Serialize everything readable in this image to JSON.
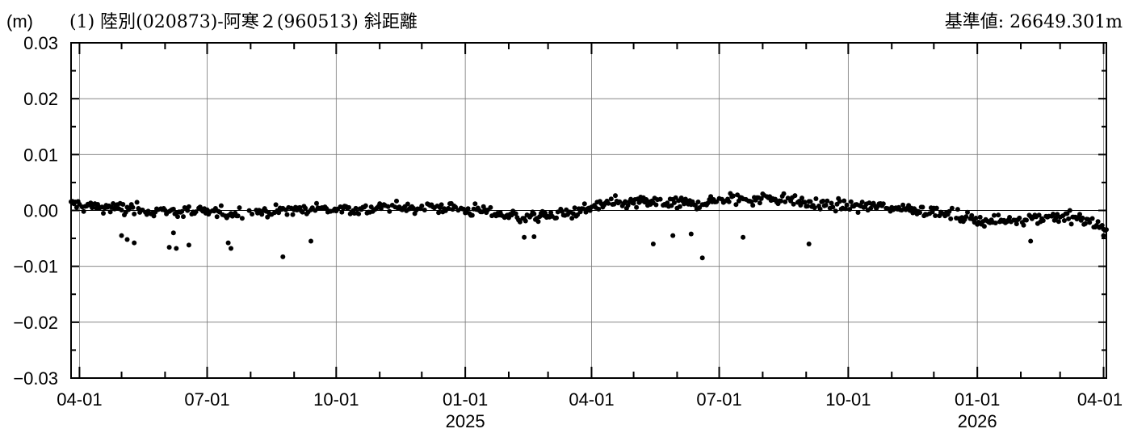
{
  "chart_data": {
    "type": "scatter",
    "title": "(1) 陸別(020873)-阿寒２(960513) 斜距離",
    "reference_label": "基準値: 26649.301m",
    "ylabel": "(m)",
    "xlabel": "",
    "ylim": [
      -0.03,
      0.03
    ],
    "xlim": [
      "2024-03-26",
      "2026-04-03"
    ],
    "y_ticks": [
      "0.03",
      "0.02",
      "0.01",
      "0.00",
      "−0.01",
      "−0.02",
      "−0.03"
    ],
    "y_tick_values": [
      0.03,
      0.02,
      0.01,
      0.0,
      -0.01,
      -0.02,
      -0.03
    ],
    "x_ticks": [
      {
        "date": "2024-04-01",
        "label": "04-01",
        "year": ""
      },
      {
        "date": "2024-07-01",
        "label": "07-01",
        "year": ""
      },
      {
        "date": "2024-10-01",
        "label": "10-01",
        "year": ""
      },
      {
        "date": "2025-01-01",
        "label": "01-01",
        "year": "2025"
      },
      {
        "date": "2025-04-01",
        "label": "04-01",
        "year": ""
      },
      {
        "date": "2025-07-01",
        "label": "07-01",
        "year": ""
      },
      {
        "date": "2025-10-01",
        "label": "10-01",
        "year": ""
      },
      {
        "date": "2026-01-01",
        "label": "01-01",
        "year": "2026"
      },
      {
        "date": "2026-04-01",
        "label": "04-01",
        "year": ""
      }
    ],
    "grid": true,
    "zero_line": true,
    "marker_color": "#000000",
    "trend_anchors": [
      [
        "2024-03-26",
        0.0012
      ],
      [
        "2024-04-20",
        0.0005
      ],
      [
        "2024-05-10",
        0.0002
      ],
      [
        "2024-06-15",
        -0.0003
      ],
      [
        "2024-07-15",
        -0.0005
      ],
      [
        "2024-08-15",
        -0.0002
      ],
      [
        "2024-09-15",
        0.0003
      ],
      [
        "2024-10-15",
        0.0002
      ],
      [
        "2024-11-15",
        0.0005
      ],
      [
        "2024-12-15",
        0.0006
      ],
      [
        "2025-01-15",
        -0.0002
      ],
      [
        "2025-02-10",
        -0.0012
      ],
      [
        "2025-03-10",
        -0.0008
      ],
      [
        "2025-04-10",
        0.001
      ],
      [
        "2025-05-10",
        0.0015
      ],
      [
        "2025-06-10",
        0.0012
      ],
      [
        "2025-07-10",
        0.002
      ],
      [
        "2025-08-10",
        0.0022
      ],
      [
        "2025-09-10",
        0.001
      ],
      [
        "2025-10-10",
        0.0008
      ],
      [
        "2025-11-15",
        0.0004
      ],
      [
        "2025-12-20",
        -0.0012
      ],
      [
        "2026-01-10",
        -0.002
      ],
      [
        "2026-02-10",
        -0.0012
      ],
      [
        "2026-03-10",
        -0.0012
      ],
      [
        "2026-04-03",
        -0.003
      ]
    ],
    "outliers": [
      [
        "2024-05-01",
        -0.0045
      ],
      [
        "2024-05-05",
        -0.0052
      ],
      [
        "2024-05-10",
        -0.0058
      ],
      [
        "2024-06-04",
        -0.0066
      ],
      [
        "2024-06-07",
        -0.004
      ],
      [
        "2024-06-09",
        -0.0068
      ],
      [
        "2024-06-18",
        -0.0062
      ],
      [
        "2024-07-16",
        -0.0058
      ],
      [
        "2024-07-18",
        -0.0068
      ],
      [
        "2024-08-24",
        -0.0083
      ],
      [
        "2024-09-13",
        -0.0055
      ],
      [
        "2025-02-12",
        -0.0048
      ],
      [
        "2025-02-19",
        -0.0047
      ],
      [
        "2025-05-15",
        -0.006
      ],
      [
        "2025-05-29",
        -0.0045
      ],
      [
        "2025-06-11",
        -0.0042
      ],
      [
        "2025-06-19",
        -0.0085
      ],
      [
        "2025-07-18",
        -0.0048
      ],
      [
        "2025-09-03",
        -0.006
      ],
      [
        "2026-02-08",
        -0.0055
      ],
      [
        "2026-04-01",
        -0.0045
      ]
    ]
  }
}
